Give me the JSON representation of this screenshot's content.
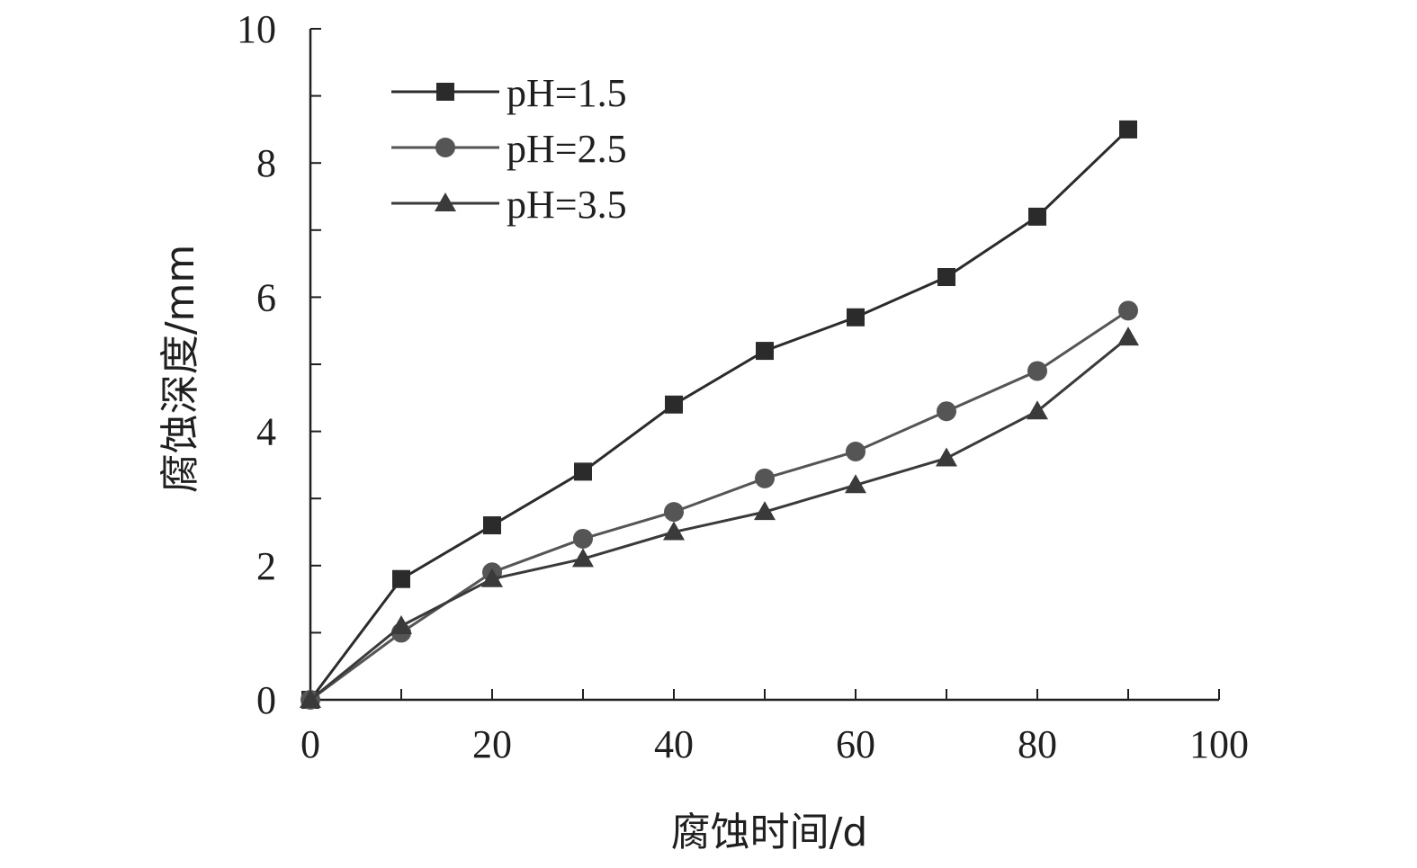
{
  "chart_data": {
    "type": "line",
    "xlabel": "腐蚀时间/d",
    "ylabel": "腐蚀深度/mm",
    "xlim": [
      0,
      100
    ],
    "ylim": [
      0,
      10
    ],
    "x_ticks": [
      "0",
      "20",
      "40",
      "60",
      "80",
      "100"
    ],
    "y_ticks": [
      "0",
      "2",
      "4",
      "6",
      "8",
      "10"
    ],
    "x_minor_step": 10,
    "y_minor_step": 1,
    "grid": false,
    "legend_position": "top-left",
    "x": [
      0,
      10,
      20,
      30,
      40,
      50,
      60,
      70,
      80,
      90
    ],
    "series": [
      {
        "name": "pH=1.5",
        "marker": "square",
        "color": "#2b2b2b",
        "values": [
          0,
          1.8,
          2.6,
          3.4,
          4.4,
          5.2,
          5.7,
          6.3,
          7.2,
          8.5
        ]
      },
      {
        "name": "pH=2.5",
        "marker": "circle",
        "color": "#555555",
        "values": [
          0,
          1.0,
          1.9,
          2.4,
          2.8,
          3.3,
          3.7,
          4.3,
          4.9,
          5.8
        ]
      },
      {
        "name": "pH=3.5",
        "marker": "triangle",
        "color": "#3a3a3a",
        "values": [
          0,
          1.1,
          1.8,
          2.1,
          2.5,
          2.8,
          3.2,
          3.6,
          4.3,
          5.4
        ]
      }
    ]
  }
}
